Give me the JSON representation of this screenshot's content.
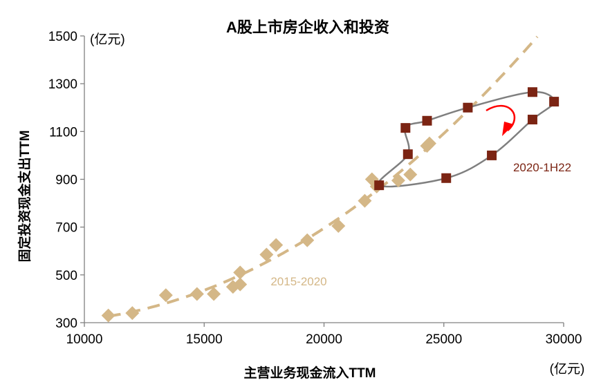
{
  "chart_data": {
    "type": "scatter",
    "title": "A股上市房企收入和投资",
    "xlabel": "主营业务现金流入TTM",
    "ylabel": "固定投资现金支出TTM",
    "x_unit": "(亿元)",
    "y_unit": "(亿元)",
    "xlim": [
      10000,
      30000
    ],
    "ylim": [
      300,
      1500
    ],
    "x_ticks": [
      10000,
      15000,
      20000,
      25000,
      30000
    ],
    "y_ticks": [
      300,
      500,
      700,
      900,
      1100,
      1300,
      1500
    ],
    "x_tick_labels": [
      "10000",
      "15000",
      "20000",
      "25000",
      "30000"
    ],
    "y_tick_labels": [
      "300",
      "500",
      "700",
      "900",
      "1100",
      "1300",
      "1500"
    ],
    "series": [
      {
        "name": "2015-2020",
        "color": "#d4b787",
        "marker": "diamond",
        "points": [
          {
            "x": 11000,
            "y": 330
          },
          {
            "x": 12000,
            "y": 340
          },
          {
            "x": 13400,
            "y": 415
          },
          {
            "x": 14700,
            "y": 420
          },
          {
            "x": 15400,
            "y": 420
          },
          {
            "x": 16200,
            "y": 450
          },
          {
            "x": 16500,
            "y": 460
          },
          {
            "x": 16500,
            "y": 510
          },
          {
            "x": 17600,
            "y": 585
          },
          {
            "x": 18000,
            "y": 625
          },
          {
            "x": 19300,
            "y": 645
          },
          {
            "x": 20600,
            "y": 705
          },
          {
            "x": 21700,
            "y": 810
          },
          {
            "x": 22000,
            "y": 900
          },
          {
            "x": 22200,
            "y": 870
          },
          {
            "x": 23100,
            "y": 895
          },
          {
            "x": 23600,
            "y": 920
          },
          {
            "x": 24300,
            "y": 1040
          },
          {
            "x": 24400,
            "y": 1050
          }
        ],
        "trendline_color": "#d4b787"
      },
      {
        "name": "2020-1H22",
        "color": "#7b2413",
        "marker": "square",
        "points": [
          {
            "x": 22300,
            "y": 875
          },
          {
            "x": 25100,
            "y": 905
          },
          {
            "x": 27000,
            "y": 1000
          },
          {
            "x": 28700,
            "y": 1150
          },
          {
            "x": 29600,
            "y": 1225
          },
          {
            "x": 28700,
            "y": 1265
          },
          {
            "x": 26000,
            "y": 1200
          },
          {
            "x": 24300,
            "y": 1145
          },
          {
            "x": 23400,
            "y": 1115
          },
          {
            "x": 23500,
            "y": 1005
          }
        ],
        "path_color": "#7f7f7f"
      }
    ],
    "annotation": {
      "type": "rotation-arrow",
      "color": "#ff0000"
    }
  }
}
